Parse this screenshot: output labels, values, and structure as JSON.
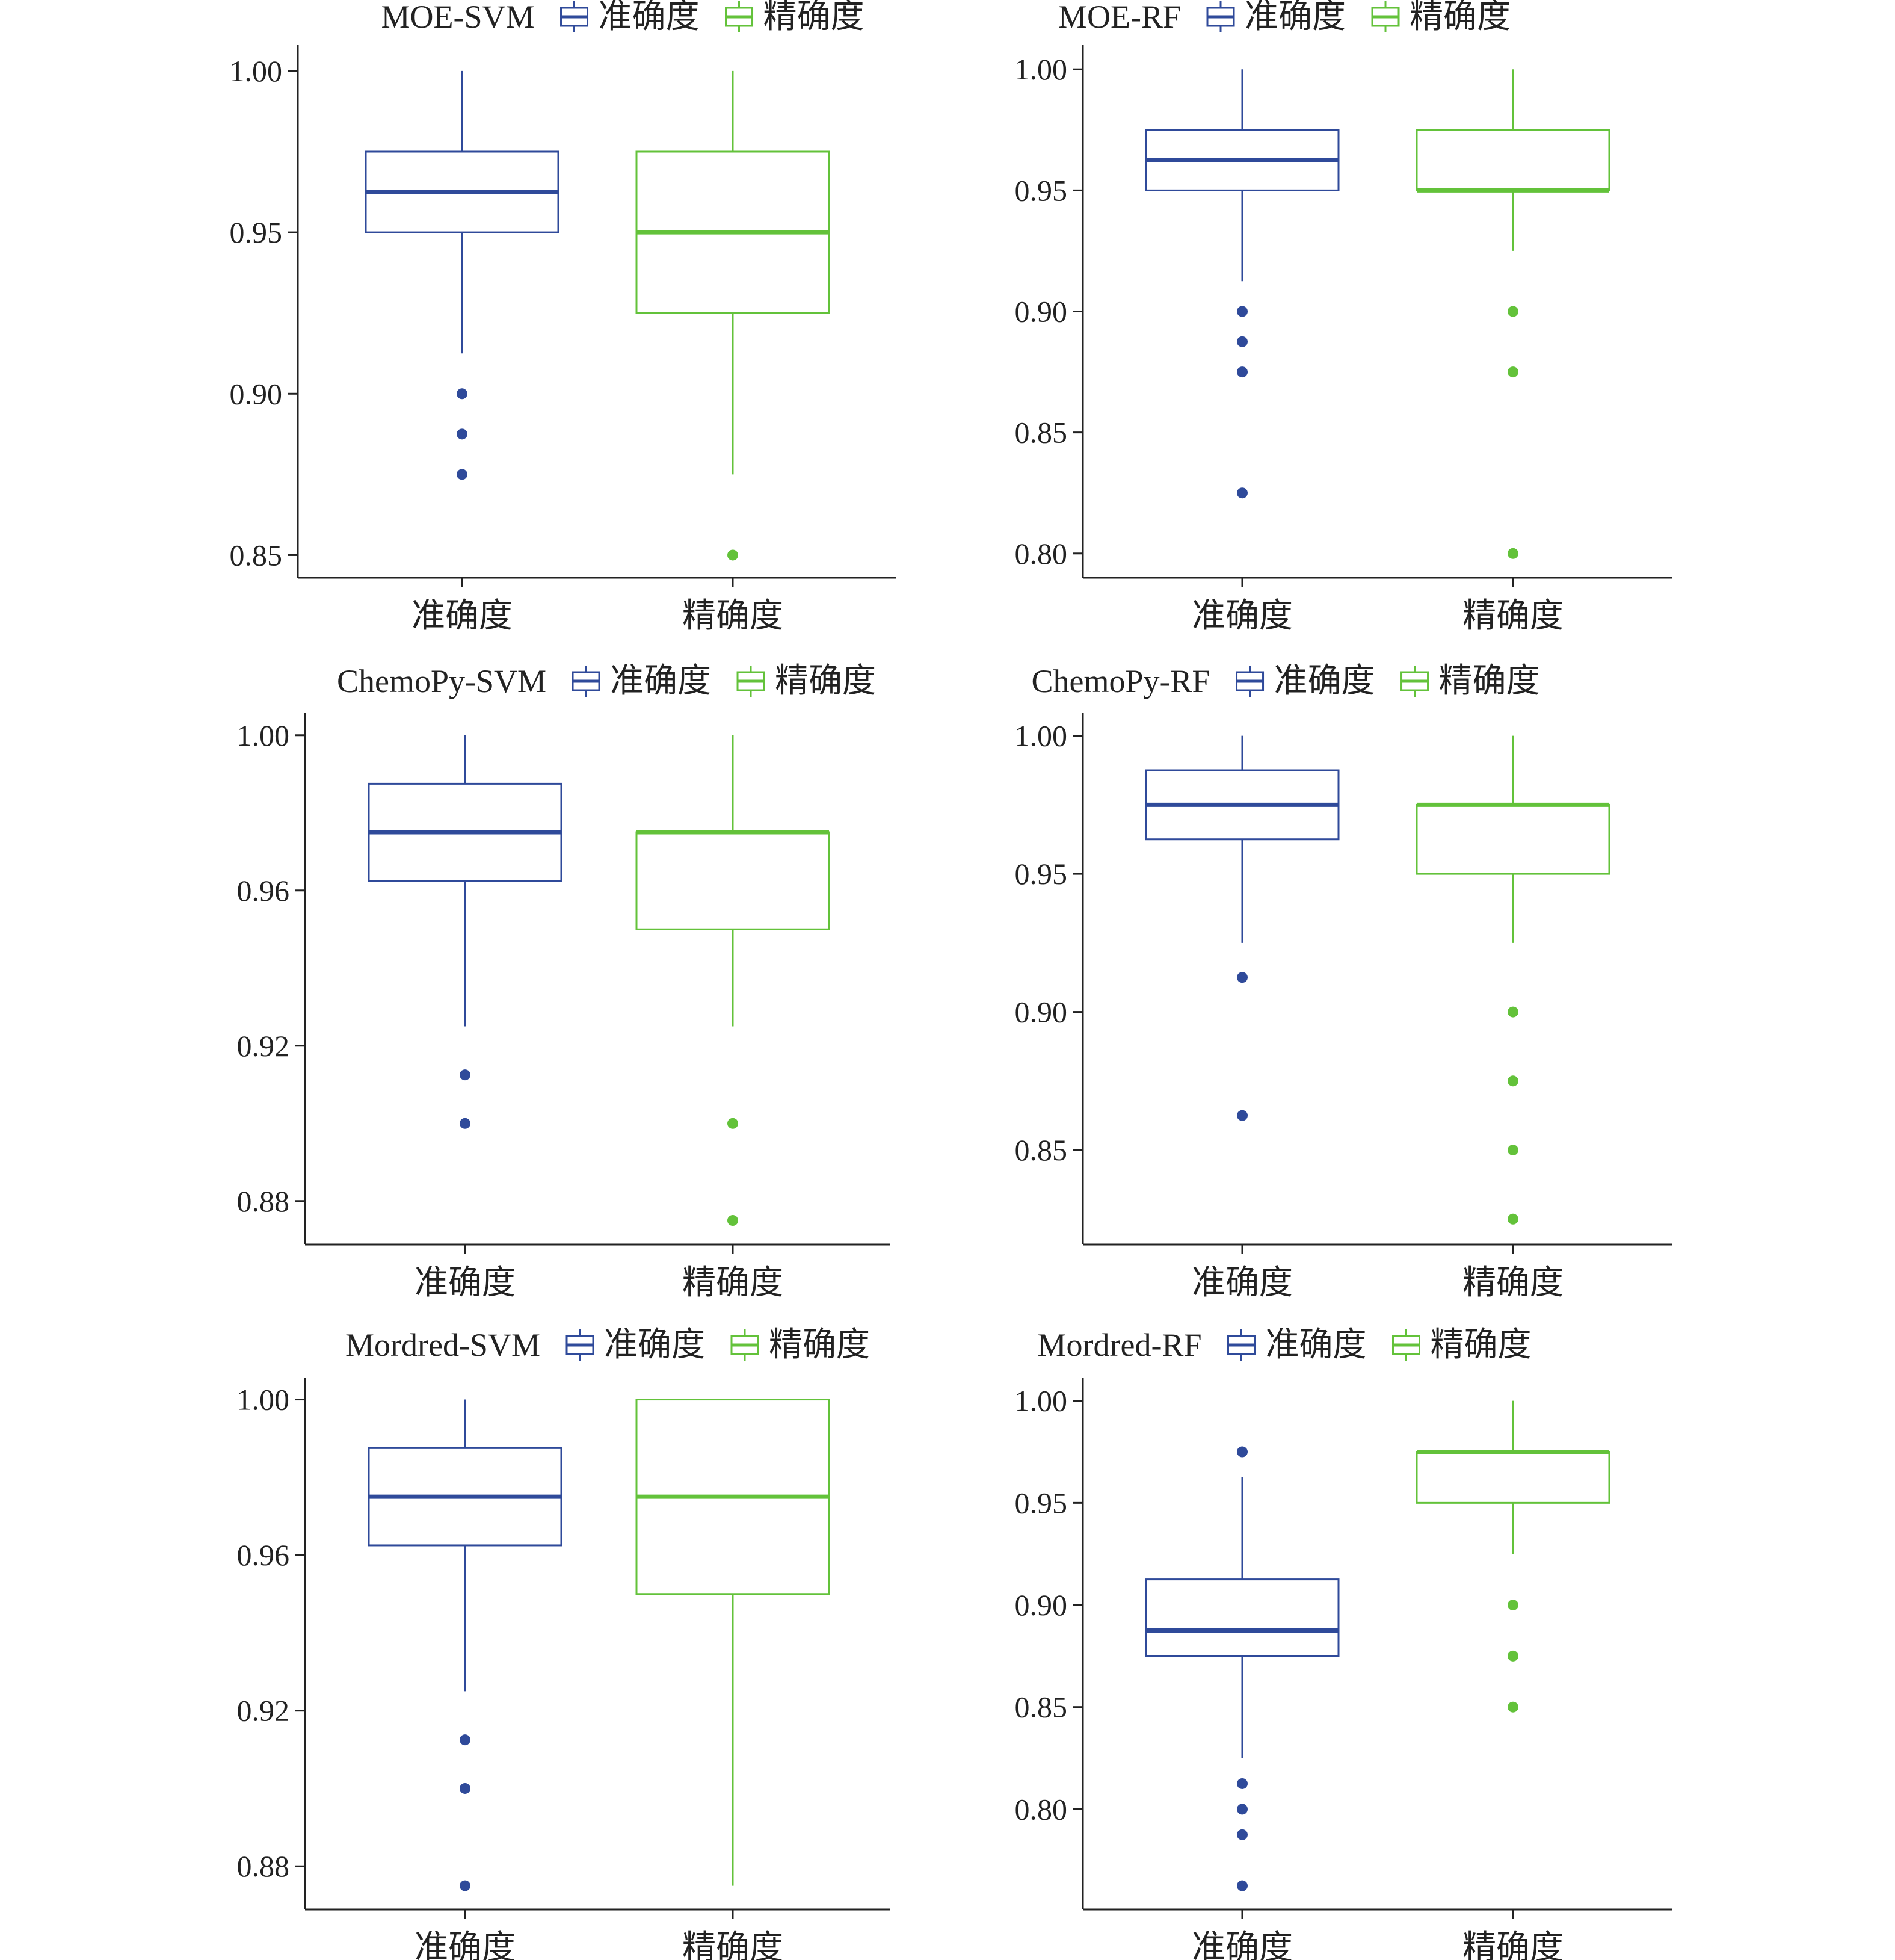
{
  "colors": {
    "accuracy": "#2f4a9a",
    "precision": "#63c23a",
    "axis": "#222222"
  },
  "chart_data": [
    {
      "type": "box",
      "title": "MOE-SVM",
      "legend": [
        "准确度",
        "精确度"
      ],
      "categories": [
        "准确度",
        "精确度"
      ],
      "ylim": [
        0.843,
        1.008
      ],
      "yticks": [
        0.85,
        0.9,
        0.95,
        1.0
      ],
      "ytick_labels": [
        "0.85",
        "0.90",
        "0.95",
        "1.00"
      ],
      "series": [
        {
          "name": "准确度",
          "whisker_low": 0.9125,
          "q1": 0.95,
          "median": 0.9625,
          "q3": 0.975,
          "whisker_high": 1.0,
          "outliers": [
            0.9,
            0.8875,
            0.875
          ]
        },
        {
          "name": "精确度",
          "whisker_low": 0.875,
          "q1": 0.925,
          "median": 0.95,
          "q3": 0.975,
          "whisker_high": 1.0,
          "outliers": [
            0.85
          ]
        }
      ]
    },
    {
      "type": "box",
      "title": "MOE-RF",
      "legend": [
        "准确度",
        "精确度"
      ],
      "categories": [
        "准确度",
        "精确度"
      ],
      "ylim": [
        0.79,
        1.01
      ],
      "yticks": [
        0.8,
        0.85,
        0.9,
        0.95,
        1.0
      ],
      "ytick_labels": [
        "0.80",
        "0.85",
        "0.90",
        "0.95",
        "1.00"
      ],
      "series": [
        {
          "name": "准确度",
          "whisker_low": 0.9125,
          "q1": 0.95,
          "median": 0.9625,
          "q3": 0.975,
          "whisker_high": 1.0,
          "outliers": [
            0.9,
            0.8875,
            0.875,
            0.825
          ]
        },
        {
          "name": "精确度",
          "whisker_low": 0.925,
          "q1": 0.95,
          "median": 0.95,
          "q3": 0.975,
          "whisker_high": 1.0,
          "outliers": [
            0.9,
            0.875,
            0.8
          ]
        }
      ]
    },
    {
      "type": "box",
      "title": "ChemoPy-SVM",
      "legend": [
        "准确度",
        "精确度"
      ],
      "categories": [
        "准确度",
        "精确度"
      ],
      "ylim": [
        0.8688,
        1.0057
      ],
      "yticks": [
        0.88,
        0.92,
        0.96,
        1.0
      ],
      "ytick_labels": [
        "0.88",
        "0.92",
        "0.96",
        "1.00"
      ],
      "series": [
        {
          "name": "准确度",
          "whisker_low": 0.925,
          "q1": 0.9625,
          "median": 0.975,
          "q3": 0.9875,
          "whisker_high": 1.0,
          "outliers": [
            0.9125,
            0.9
          ]
        },
        {
          "name": "精确度",
          "whisker_low": 0.925,
          "q1": 0.95,
          "median": 0.975,
          "q3": 0.975,
          "whisker_high": 1.0,
          "outliers": [
            0.9,
            0.875
          ]
        }
      ]
    },
    {
      "type": "box",
      "title": "ChemoPy-RF",
      "legend": [
        "准确度",
        "精确度"
      ],
      "categories": [
        "准确度",
        "精确度"
      ],
      "ylim": [
        0.8158,
        1.0082
      ],
      "yticks": [
        0.85,
        0.9,
        0.95,
        1.0
      ],
      "ytick_labels": [
        "0.85",
        "0.90",
        "0.95",
        "1.00"
      ],
      "series": [
        {
          "name": "准确度",
          "whisker_low": 0.925,
          "q1": 0.9625,
          "median": 0.975,
          "q3": 0.9875,
          "whisker_high": 1.0,
          "outliers": [
            0.9125,
            0.8625
          ]
        },
        {
          "name": "精确度",
          "whisker_low": 0.925,
          "q1": 0.95,
          "median": 0.975,
          "q3": 0.975,
          "whisker_high": 1.0,
          "outliers": [
            0.9,
            0.875,
            0.85,
            0.825
          ]
        }
      ]
    },
    {
      "type": "box",
      "title": "Mordred-SVM",
      "legend": [
        "准确度",
        "精确度"
      ],
      "categories": [
        "准确度",
        "精确度"
      ],
      "ylim": [
        0.8689,
        1.0055
      ],
      "yticks": [
        0.88,
        0.92,
        0.96,
        1.0
      ],
      "ytick_labels": [
        "0.88",
        "0.92",
        "0.96",
        "1.00"
      ],
      "series": [
        {
          "name": "准确度",
          "whisker_low": 0.925,
          "q1": 0.9625,
          "median": 0.975,
          "q3": 0.9875,
          "whisker_high": 1.0,
          "outliers": [
            0.9125,
            0.9,
            0.875
          ]
        },
        {
          "name": "精确度",
          "whisker_low": 0.875,
          "q1": 0.95,
          "median": 0.975,
          "q3": 1.0,
          "whisker_high": 1.0,
          "outliers": []
        }
      ]
    },
    {
      "type": "box",
      "title": "Mordred-RF",
      "legend": [
        "准确度",
        "精确度"
      ],
      "categories": [
        "准确度",
        "精确度"
      ],
      "ylim": [
        0.7509,
        1.0111
      ],
      "yticks": [
        0.8,
        0.85,
        0.9,
        0.95,
        1.0
      ],
      "ytick_labels": [
        "0.80",
        "0.85",
        "0.90",
        "0.95",
        "1.00"
      ],
      "series": [
        {
          "name": "准确度",
          "whisker_low": 0.825,
          "q1": 0.875,
          "median": 0.8875,
          "q3": 0.9125,
          "whisker_high": 0.9625,
          "outliers": [
            0.975,
            0.8125,
            0.8,
            0.7875,
            0.7625
          ]
        },
        {
          "name": "精确度",
          "whisker_low": 0.925,
          "q1": 0.95,
          "median": 0.975,
          "q3": 0.975,
          "whisker_high": 1.0,
          "outliers": [
            0.9,
            0.875,
            0.85
          ]
        }
      ]
    }
  ]
}
